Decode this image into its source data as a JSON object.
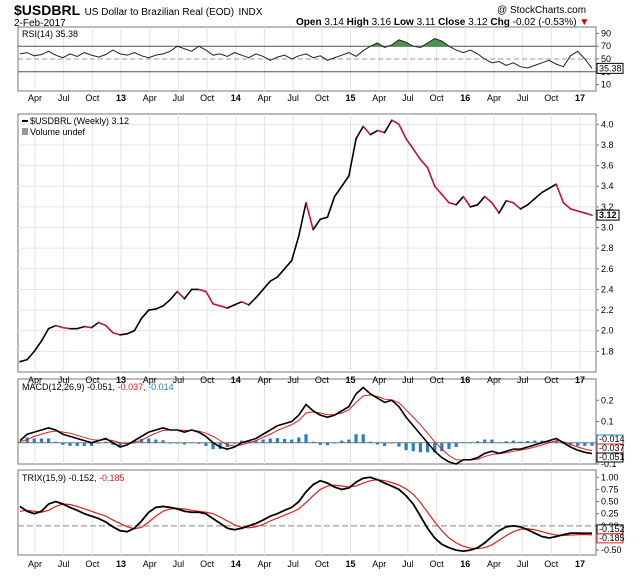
{
  "header": {
    "symbol": "$USDBRL",
    "name": "US Dollar to Brazilian Real (EOD)",
    "exchange": "INDX",
    "date": "2-Feb-2017",
    "watermark": "@ StockCharts.com",
    "open_label": "Open",
    "open": "3.14",
    "high_label": "High",
    "high": "3.16",
    "low_label": "Low",
    "low": "3.11",
    "close_label": "Close",
    "close": "3.12",
    "chg_label": "Chg",
    "chg": "-0.02 (-0.53%)",
    "chg_arrow": "▼"
  },
  "x_axis": {
    "labels": [
      "Apr",
      "Jul",
      "Oct",
      "13",
      "Apr",
      "Jul",
      "Oct",
      "14",
      "Apr",
      "Jul",
      "Oct",
      "15",
      "Apr",
      "Jul",
      "Oct",
      "16",
      "Apr",
      "Jul",
      "Oct",
      "17"
    ],
    "bold_years": [
      "13",
      "14",
      "15",
      "16",
      "17"
    ]
  },
  "chart_data": [
    {
      "type": "line",
      "panel": "rsi",
      "label": "RSI(14) 35.38",
      "ylim": [
        0,
        100
      ],
      "y_ticks": [
        10,
        30,
        50,
        70,
        90
      ],
      "reference_lines": [
        30,
        50,
        70
      ],
      "last_value_tag": "35.38",
      "x_index": [
        0,
        1,
        2,
        3,
        4,
        5,
        6,
        7,
        8,
        9,
        10,
        11,
        12,
        13,
        14,
        15,
        16,
        17,
        18,
        19,
        20,
        21,
        22,
        23,
        24,
        25,
        26,
        27,
        28,
        29,
        30,
        31,
        32,
        33,
        34,
        35,
        36,
        37,
        38,
        39,
        40,
        41,
        42,
        43,
        44,
        45,
        46,
        47,
        48,
        49,
        50,
        51,
        52,
        53,
        54,
        55,
        56,
        57,
        58,
        59,
        60,
        61,
        62,
        63,
        64,
        65,
        66,
        67,
        68,
        69,
        70,
        71,
        72,
        73,
        74,
        75,
        76,
        77,
        78,
        79,
        80
      ],
      "values": [
        58,
        60,
        55,
        57,
        62,
        56,
        52,
        58,
        54,
        60,
        56,
        53,
        57,
        64,
        58,
        56,
        60,
        55,
        52,
        56,
        58,
        62,
        70,
        66,
        62,
        70,
        64,
        56,
        58,
        54,
        60,
        56,
        52,
        58,
        54,
        48,
        53,
        56,
        50,
        55,
        58,
        52,
        55,
        48,
        52,
        56,
        60,
        54,
        63,
        70,
        75,
        68,
        72,
        80,
        76,
        70,
        68,
        75,
        82,
        78,
        70,
        64,
        60,
        64,
        58,
        50,
        44,
        46,
        40,
        44,
        38,
        36,
        40,
        44,
        48,
        42,
        38,
        55,
        62,
        50,
        35.38
      ]
    },
    {
      "type": "line",
      "panel": "price",
      "label": "$USDBRL (Weekly) 3.12",
      "sublabel": "Volume undef",
      "ylim": [
        1.6,
        4.1
      ],
      "y_ticks": [
        1.8,
        2.0,
        2.2,
        2.4,
        2.6,
        2.8,
        3.0,
        3.2,
        3.4,
        3.6,
        3.8,
        4.0
      ],
      "last_value_tag": "3.12",
      "x_index": [
        0,
        1,
        2,
        3,
        4,
        5,
        6,
        7,
        8,
        9,
        10,
        11,
        12,
        13,
        14,
        15,
        16,
        17,
        18,
        19,
        20,
        21,
        22,
        23,
        24,
        25,
        26,
        27,
        28,
        29,
        30,
        31,
        32,
        33,
        34,
        35,
        36,
        37,
        38,
        39,
        40,
        41,
        42,
        43,
        44,
        45,
        46,
        47,
        48,
        49,
        50,
        51,
        52,
        53,
        54,
        55,
        56,
        57,
        58,
        59,
        60,
        61,
        62,
        63,
        64,
        65,
        66,
        67,
        68,
        69,
        70,
        71,
        72,
        73,
        74,
        75,
        76,
        77,
        78,
        79,
        80
      ],
      "values": [
        1.7,
        1.72,
        1.8,
        1.9,
        2.02,
        2.05,
        2.03,
        2.02,
        2.02,
        2.04,
        2.03,
        2.08,
        2.05,
        1.98,
        1.96,
        1.97,
        2.0,
        2.12,
        2.2,
        2.21,
        2.24,
        2.3,
        2.38,
        2.31,
        2.4,
        2.4,
        2.38,
        2.26,
        2.24,
        2.22,
        2.25,
        2.28,
        2.25,
        2.32,
        2.4,
        2.48,
        2.52,
        2.6,
        2.68,
        2.92,
        3.24,
        2.98,
        3.08,
        3.1,
        3.3,
        3.4,
        3.5,
        3.86,
        3.98,
        3.9,
        3.94,
        3.92,
        4.04,
        4.0,
        3.86,
        3.76,
        3.66,
        3.58,
        3.4,
        3.32,
        3.24,
        3.22,
        3.3,
        3.2,
        3.22,
        3.3,
        3.24,
        3.14,
        3.26,
        3.24,
        3.18,
        3.22,
        3.28,
        3.34,
        3.38,
        3.42,
        3.24,
        3.18,
        3.16,
        3.14,
        3.12
      ]
    },
    {
      "type": "line",
      "panel": "macd",
      "label": "MACD(12,26,9) -0.051, -0.037, -0.014",
      "label_parts": [
        "MACD(12,26,9)",
        "-0.051,",
        "-0.037,",
        "-0.014"
      ],
      "ylim": [
        -0.1,
        0.3
      ],
      "y_ticks": [
        0.2,
        0.1,
        0.0,
        -0.1
      ],
      "last_value_tags": [
        "-0.014",
        "-0.037",
        "-0.051"
      ],
      "series": [
        {
          "name": "MACD",
          "values": [
            0.01,
            0.04,
            0.05,
            0.06,
            0.07,
            0.06,
            0.04,
            0.03,
            0.02,
            0.01,
            0.0,
            0.01,
            0.02,
            0.0,
            -0.02,
            -0.01,
            0.01,
            0.03,
            0.05,
            0.06,
            0.07,
            0.06,
            0.06,
            0.05,
            0.06,
            0.05,
            0.03,
            0.0,
            -0.02,
            -0.03,
            -0.02,
            0.0,
            0.01,
            0.02,
            0.04,
            0.06,
            0.08,
            0.09,
            0.1,
            0.13,
            0.18,
            0.15,
            0.13,
            0.12,
            0.13,
            0.15,
            0.17,
            0.23,
            0.26,
            0.23,
            0.21,
            0.19,
            0.2,
            0.17,
            0.12,
            0.08,
            0.04,
            0.0,
            -0.04,
            -0.07,
            -0.09,
            -0.1,
            -0.08,
            -0.08,
            -0.07,
            -0.05,
            -0.04,
            -0.05,
            -0.04,
            -0.03,
            -0.03,
            -0.02,
            -0.01,
            0.0,
            0.01,
            0.02,
            0.0,
            -0.02,
            -0.035,
            -0.045,
            -0.051
          ]
        },
        {
          "name": "Signal",
          "values": [
            0.005,
            0.015,
            0.03,
            0.04,
            0.05,
            0.055,
            0.05,
            0.045,
            0.035,
            0.025,
            0.015,
            0.012,
            0.015,
            0.01,
            0.0,
            -0.005,
            0.0,
            0.012,
            0.03,
            0.045,
            0.058,
            0.06,
            0.06,
            0.058,
            0.058,
            0.055,
            0.045,
            0.03,
            0.01,
            -0.01,
            -0.015,
            -0.01,
            0.0,
            0.01,
            0.025,
            0.04,
            0.058,
            0.072,
            0.085,
            0.105,
            0.14,
            0.145,
            0.14,
            0.132,
            0.132,
            0.14,
            0.155,
            0.19,
            0.22,
            0.225,
            0.218,
            0.205,
            0.202,
            0.188,
            0.155,
            0.12,
            0.085,
            0.045,
            0.005,
            -0.03,
            -0.06,
            -0.08,
            -0.082,
            -0.082,
            -0.077,
            -0.065,
            -0.055,
            -0.052,
            -0.047,
            -0.04,
            -0.035,
            -0.028,
            -0.02,
            -0.01,
            0.0,
            0.01,
            0.005,
            -0.008,
            -0.02,
            -0.03,
            -0.037
          ]
        },
        {
          "name": "Histogram",
          "values": [
            0.005,
            0.025,
            0.02,
            0.02,
            0.02,
            0.005,
            -0.01,
            -0.015,
            -0.015,
            -0.015,
            -0.015,
            -0.002,
            0.005,
            -0.01,
            -0.02,
            -0.005,
            0.01,
            0.018,
            0.02,
            0.015,
            0.012,
            0.0,
            0.0,
            -0.008,
            0.002,
            -0.005,
            -0.015,
            -0.03,
            -0.03,
            -0.02,
            -0.005,
            0.01,
            0.01,
            0.01,
            0.015,
            0.02,
            0.022,
            0.018,
            0.015,
            0.025,
            0.04,
            0.005,
            -0.01,
            -0.012,
            -0.002,
            0.01,
            0.015,
            0.04,
            0.04,
            0.005,
            -0.008,
            -0.015,
            -0.002,
            -0.018,
            -0.035,
            -0.04,
            -0.045,
            -0.045,
            -0.045,
            -0.04,
            -0.03,
            -0.02,
            0.002,
            0.002,
            0.007,
            0.015,
            0.015,
            0.002,
            0.007,
            0.01,
            0.005,
            0.008,
            0.01,
            0.01,
            0.01,
            0.01,
            -0.005,
            -0.012,
            -0.015,
            -0.015,
            -0.014
          ]
        }
      ]
    },
    {
      "type": "line",
      "panel": "trix",
      "label": "TRIX(15,9) -0.152, -0.185",
      "label_parts": [
        "TRIX(15,9) -0.152,",
        "-0.185"
      ],
      "ylim": [
        -0.6,
        1.15
      ],
      "y_ticks": [
        1.0,
        0.75,
        0.5,
        0.25,
        0.0,
        -0.25,
        -0.5
      ],
      "reference_lines": [
        0
      ],
      "last_value_tags": [
        "-0.152",
        "-0.185"
      ],
      "series": [
        {
          "name": "TRIX",
          "values": [
            0.4,
            0.3,
            0.25,
            0.3,
            0.45,
            0.5,
            0.45,
            0.38,
            0.32,
            0.25,
            0.2,
            0.15,
            0.08,
            -0.02,
            -0.1,
            -0.12,
            -0.05,
            0.1,
            0.28,
            0.38,
            0.4,
            0.38,
            0.35,
            0.3,
            0.28,
            0.28,
            0.25,
            0.15,
            0.05,
            -0.05,
            -0.08,
            -0.05,
            0.0,
            0.05,
            0.12,
            0.2,
            0.25,
            0.32,
            0.38,
            0.5,
            0.7,
            0.85,
            0.93,
            0.88,
            0.8,
            0.75,
            0.78,
            0.9,
            0.98,
            1.0,
            0.95,
            0.88,
            0.82,
            0.75,
            0.62,
            0.45,
            0.2,
            -0.05,
            -0.25,
            -0.38,
            -0.45,
            -0.5,
            -0.52,
            -0.5,
            -0.45,
            -0.35,
            -0.22,
            -0.1,
            -0.02,
            0.0,
            -0.02,
            -0.08,
            -0.15,
            -0.22,
            -0.25,
            -0.22,
            -0.18,
            -0.15,
            -0.15,
            -0.152,
            -0.152
          ]
        },
        {
          "name": "Signal",
          "values": [
            0.3,
            0.32,
            0.3,
            0.28,
            0.32,
            0.4,
            0.45,
            0.44,
            0.4,
            0.35,
            0.3,
            0.25,
            0.2,
            0.12,
            0.05,
            -0.02,
            -0.06,
            -0.03,
            0.08,
            0.2,
            0.3,
            0.35,
            0.36,
            0.35,
            0.32,
            0.3,
            0.28,
            0.25,
            0.18,
            0.1,
            0.02,
            -0.03,
            -0.04,
            -0.02,
            0.03,
            0.1,
            0.16,
            0.22,
            0.28,
            0.35,
            0.48,
            0.62,
            0.75,
            0.82,
            0.84,
            0.82,
            0.8,
            0.82,
            0.88,
            0.93,
            0.95,
            0.93,
            0.89,
            0.84,
            0.76,
            0.65,
            0.48,
            0.28,
            0.08,
            -0.1,
            -0.25,
            -0.35,
            -0.42,
            -0.46,
            -0.47,
            -0.45,
            -0.39,
            -0.3,
            -0.2,
            -0.12,
            -0.07,
            -0.06,
            -0.08,
            -0.12,
            -0.16,
            -0.19,
            -0.2,
            -0.19,
            -0.18,
            -0.18,
            -0.185
          ]
        }
      ]
    }
  ]
}
